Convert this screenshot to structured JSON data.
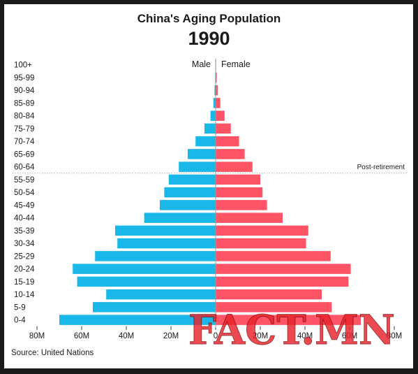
{
  "title": "China's Aging Population",
  "subtitle": "1990",
  "source": "Source: United Nations",
  "watermark": "FACT.MN",
  "chart_data": {
    "type": "bar",
    "orientation": "horizontal-population-pyramid",
    "categories": [
      "100+",
      "95-99",
      "90-94",
      "85-89",
      "80-84",
      "75-79",
      "70-74",
      "65-69",
      "60-64",
      "55-59",
      "50-54",
      "45-49",
      "40-44",
      "35-39",
      "30-34",
      "25-29",
      "20-24",
      "15-19",
      "10-14",
      "5-9",
      "0-4"
    ],
    "series": [
      {
        "name": "Male",
        "color": "#1ab8e8",
        "values": [
          0.1,
          0.2,
          0.5,
          1,
          2.3,
          5,
          9,
          12.5,
          16.5,
          21,
          23,
          25,
          32,
          45,
          44,
          54,
          64,
          62,
          49,
          55,
          70
        ]
      },
      {
        "name": "Female",
        "color": "#ff5466",
        "values": [
          0.2,
          0.5,
          1,
          2.1,
          4,
          6.8,
          10.5,
          13,
          16.5,
          20,
          21,
          23,
          30,
          41.5,
          40.5,
          51.5,
          60.5,
          59.5,
          47.5,
          52,
          65
        ]
      }
    ],
    "xlim": [
      -80,
      80
    ],
    "x_ticks": [
      "80M",
      "60M",
      "40M",
      "20M",
      "0",
      "20M",
      "40M",
      "60M",
      "80M"
    ],
    "annotation": "Post-retirement",
    "annotation_after_category": "60-64",
    "grid": false,
    "legend": "top-center"
  }
}
